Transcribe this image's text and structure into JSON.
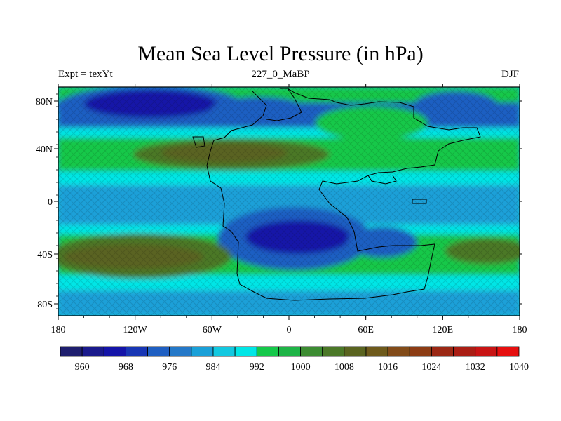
{
  "title": "Mean Sea Level Pressure (in hPa)",
  "subtitle_left": "Expt = texYt",
  "subtitle_center": "227_0_MaBP",
  "subtitle_right": "DJF",
  "lat_ticks": [
    "80N",
    "40N",
    "0",
    "40S",
    "80S"
  ],
  "lon_ticks": [
    "180",
    "120W",
    "60W",
    "0",
    "60E",
    "120E",
    "180"
  ],
  "colorbar": {
    "labels": [
      "960",
      "968",
      "976",
      "984",
      "992",
      "1000",
      "1008",
      "1016",
      "1024",
      "1032",
      "1040"
    ],
    "colors": [
      "#1e1e6e",
      "#1a1a8c",
      "#1414a8",
      "#1836b4",
      "#1f5fc2",
      "#2478c8",
      "#1aa0d8",
      "#12c8e0",
      "#00e6e6",
      "#15c84a",
      "#1eb446",
      "#3c8c32",
      "#4b7828",
      "#5a6420",
      "#6e5a1c",
      "#824b19",
      "#8c3c14",
      "#9b2814",
      "#aa1e14",
      "#c81414",
      "#e60f0f"
    ]
  },
  "field_colors": {
    "deep_low": "#1414a8",
    "low": "#1f5fc2",
    "mid_low": "#1aa0d8",
    "neutral": "#12c8e0",
    "cyan": "#00e6e6",
    "green": "#15c84a",
    "olive": "#4b7828",
    "high": "#5a6420"
  }
}
